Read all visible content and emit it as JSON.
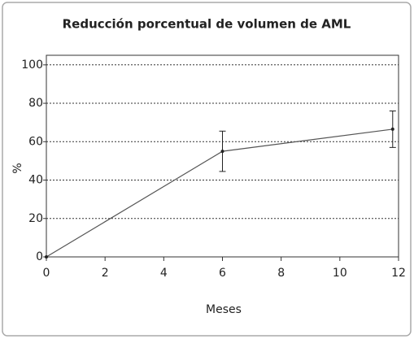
{
  "chart_data": {
    "type": "line",
    "title": "Reducción porcentual de volumen de AML",
    "x_label": "Meses",
    "y_label": "%",
    "x": [
      0,
      6,
      11.8
    ],
    "values": [
      0,
      55,
      66.5
    ],
    "errors": [
      null,
      10.5,
      9.5
    ],
    "color": "#555555",
    "xlim": [
      0,
      12
    ],
    "xticks": [
      0,
      2,
      4,
      6,
      8,
      10,
      12
    ],
    "ylim": [
      0,
      105
    ],
    "yticks": [
      0,
      20,
      40,
      60,
      80,
      100
    ],
    "grid": true
  }
}
